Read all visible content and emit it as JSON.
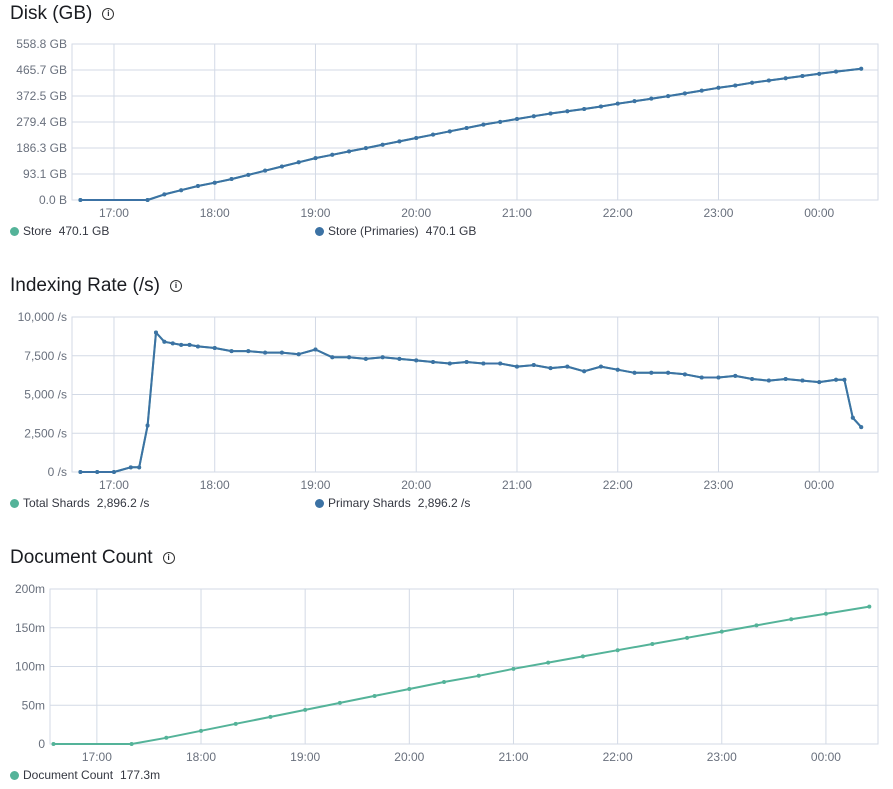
{
  "chart_data": [
    {
      "type": "line",
      "title": "Disk (GB)",
      "info_icon": "info-icon",
      "x_ticks": [
        "17:00",
        "18:00",
        "19:00",
        "20:00",
        "21:00",
        "22:00",
        "23:00",
        "00:00"
      ],
      "x_range": [
        "16:35",
        "00:35"
      ],
      "y_ticks": [
        "0.0 B",
        "93.1 GB",
        "186.3 GB",
        "279.4 GB",
        "372.5 GB",
        "465.7 GB",
        "558.8 GB"
      ],
      "ylim": [
        0,
        558.8
      ],
      "y_unit": "GB",
      "grid": true,
      "legend_position": "bottom",
      "series": [
        {
          "name": "Store",
          "legend_value": "470.1 GB",
          "color": "#54b399",
          "x": [
            "16:40",
            "17:20",
            "17:30",
            "17:40",
            "17:50",
            "18:00",
            "18:10",
            "18:20",
            "18:30",
            "18:40",
            "18:50",
            "19:00",
            "19:10",
            "19:20",
            "19:30",
            "19:40",
            "19:50",
            "20:00",
            "20:10",
            "20:20",
            "20:30",
            "20:40",
            "20:50",
            "21:00",
            "21:10",
            "21:20",
            "21:30",
            "21:40",
            "21:50",
            "22:00",
            "22:10",
            "22:20",
            "22:30",
            "22:40",
            "22:50",
            "23:00",
            "23:10",
            "23:20",
            "23:30",
            "23:40",
            "23:50",
            "00:00",
            "00:10",
            "00:25"
          ],
          "y": [
            0,
            0,
            20,
            35,
            50,
            62,
            75,
            90,
            105,
            120,
            135,
            150,
            162,
            174,
            186,
            198,
            210,
            222,
            234,
            246,
            258,
            270,
            280,
            290,
            300,
            310,
            318,
            326,
            335,
            345,
            354,
            363,
            372,
            382,
            392,
            402,
            410,
            420,
            428,
            436,
            444,
            452,
            460,
            470.1
          ]
        },
        {
          "name": "Store (Primaries)",
          "legend_value": "470.1 GB",
          "color": "#3c72a4",
          "x": [
            "16:40",
            "17:20",
            "17:30",
            "17:40",
            "17:50",
            "18:00",
            "18:10",
            "18:20",
            "18:30",
            "18:40",
            "18:50",
            "19:00",
            "19:10",
            "19:20",
            "19:30",
            "19:40",
            "19:50",
            "20:00",
            "20:10",
            "20:20",
            "20:30",
            "20:40",
            "20:50",
            "21:00",
            "21:10",
            "21:20",
            "21:30",
            "21:40",
            "21:50",
            "22:00",
            "22:10",
            "22:20",
            "22:30",
            "22:40",
            "22:50",
            "23:00",
            "23:10",
            "23:20",
            "23:30",
            "23:40",
            "23:50",
            "00:00",
            "00:10",
            "00:25"
          ],
          "y": [
            0,
            0,
            20,
            35,
            50,
            62,
            75,
            90,
            105,
            120,
            135,
            150,
            162,
            174,
            186,
            198,
            210,
            222,
            234,
            246,
            258,
            270,
            280,
            290,
            300,
            310,
            318,
            326,
            335,
            345,
            354,
            363,
            372,
            382,
            392,
            402,
            410,
            420,
            428,
            436,
            444,
            452,
            460,
            470.1
          ]
        }
      ]
    },
    {
      "type": "line",
      "title": "Indexing Rate (/s)",
      "info_icon": "info-icon",
      "x_ticks": [
        "17:00",
        "18:00",
        "19:00",
        "20:00",
        "21:00",
        "22:00",
        "23:00",
        "00:00"
      ],
      "x_range": [
        "16:35",
        "00:35"
      ],
      "y_ticks": [
        "0 /s",
        "2,500 /s",
        "5,000 /s",
        "7,500 /s",
        "10,000 /s"
      ],
      "ylim": [
        0,
        10000
      ],
      "y_unit": "/s",
      "grid": true,
      "legend_position": "bottom",
      "series": [
        {
          "name": "Total Shards",
          "legend_value": "2,896.2 /s",
          "color": "#54b399",
          "x": [
            "16:40",
            "16:50",
            "17:00",
            "17:10",
            "17:15",
            "17:20",
            "17:25",
            "17:30",
            "17:35",
            "17:40",
            "17:45",
            "17:50",
            "18:00",
            "18:10",
            "18:20",
            "18:30",
            "18:40",
            "18:50",
            "19:00",
            "19:10",
            "19:20",
            "19:30",
            "19:40",
            "19:50",
            "20:00",
            "20:10",
            "20:20",
            "20:30",
            "20:40",
            "20:50",
            "21:00",
            "21:10",
            "21:20",
            "21:30",
            "21:40",
            "21:50",
            "22:00",
            "22:10",
            "22:20",
            "22:30",
            "22:40",
            "22:50",
            "23:00",
            "23:10",
            "23:20",
            "23:30",
            "23:40",
            "23:50",
            "00:00",
            "00:10",
            "00:15",
            "00:20",
            "00:25"
          ],
          "y": [
            0,
            0,
            0,
            300,
            300,
            3000,
            9000,
            8400,
            8300,
            8200,
            8200,
            8100,
            8000,
            7800,
            7800,
            7700,
            7700,
            7600,
            7900,
            7400,
            7400,
            7300,
            7400,
            7300,
            7200,
            7100,
            7000,
            7100,
            7000,
            7000,
            6800,
            6900,
            6700,
            6800,
            6500,
            6800,
            6600,
            6400,
            6400,
            6400,
            6300,
            6100,
            6100,
            6200,
            6000,
            5900,
            6000,
            5900,
            5800,
            5950,
            5950,
            3500,
            2896.2
          ]
        },
        {
          "name": "Primary Shards",
          "legend_value": "2,896.2 /s",
          "color": "#3c72a4",
          "x": [
            "16:40",
            "16:50",
            "17:00",
            "17:10",
            "17:15",
            "17:20",
            "17:25",
            "17:30",
            "17:35",
            "17:40",
            "17:45",
            "17:50",
            "18:00",
            "18:10",
            "18:20",
            "18:30",
            "18:40",
            "18:50",
            "19:00",
            "19:10",
            "19:20",
            "19:30",
            "19:40",
            "19:50",
            "20:00",
            "20:10",
            "20:20",
            "20:30",
            "20:40",
            "20:50",
            "21:00",
            "21:10",
            "21:20",
            "21:30",
            "21:40",
            "21:50",
            "22:00",
            "22:10",
            "22:20",
            "22:30",
            "22:40",
            "22:50",
            "23:00",
            "23:10",
            "23:20",
            "23:30",
            "23:40",
            "23:50",
            "00:00",
            "00:10",
            "00:15",
            "00:20",
            "00:25"
          ],
          "y": [
            0,
            0,
            0,
            300,
            300,
            3000,
            9000,
            8400,
            8300,
            8200,
            8200,
            8100,
            8000,
            7800,
            7800,
            7700,
            7700,
            7600,
            7900,
            7400,
            7400,
            7300,
            7400,
            7300,
            7200,
            7100,
            7000,
            7100,
            7000,
            7000,
            6800,
            6900,
            6700,
            6800,
            6500,
            6800,
            6600,
            6400,
            6400,
            6400,
            6300,
            6100,
            6100,
            6200,
            6000,
            5900,
            6000,
            5900,
            5800,
            5950,
            5950,
            3500,
            2896.2
          ]
        }
      ]
    },
    {
      "type": "line",
      "title": "Document Count",
      "info_icon": "info-icon",
      "x_ticks": [
        "17:00",
        "18:00",
        "19:00",
        "20:00",
        "21:00",
        "22:00",
        "23:00",
        "00:00"
      ],
      "x_range": [
        "16:33",
        "00:30"
      ],
      "y_ticks": [
        "0",
        "50m",
        "100m",
        "150m",
        "200m"
      ],
      "ylim": [
        0,
        200
      ],
      "y_unit": "m",
      "grid": true,
      "legend_position": "bottom",
      "series": [
        {
          "name": "Document Count",
          "legend_value": "177.3m",
          "color": "#54b399",
          "x": [
            "16:35",
            "17:20",
            "17:40",
            "18:00",
            "18:20",
            "18:40",
            "19:00",
            "19:20",
            "19:40",
            "20:00",
            "20:20",
            "20:40",
            "21:00",
            "21:20",
            "21:40",
            "22:00",
            "22:20",
            "22:40",
            "23:00",
            "23:20",
            "23:40",
            "00:00",
            "00:25"
          ],
          "y": [
            0,
            0,
            8,
            17,
            26,
            35,
            44,
            53,
            62,
            71,
            80,
            88,
            97,
            105,
            113,
            121,
            129,
            137,
            145,
            153,
            161,
            168,
            177.3
          ]
        }
      ]
    }
  ]
}
